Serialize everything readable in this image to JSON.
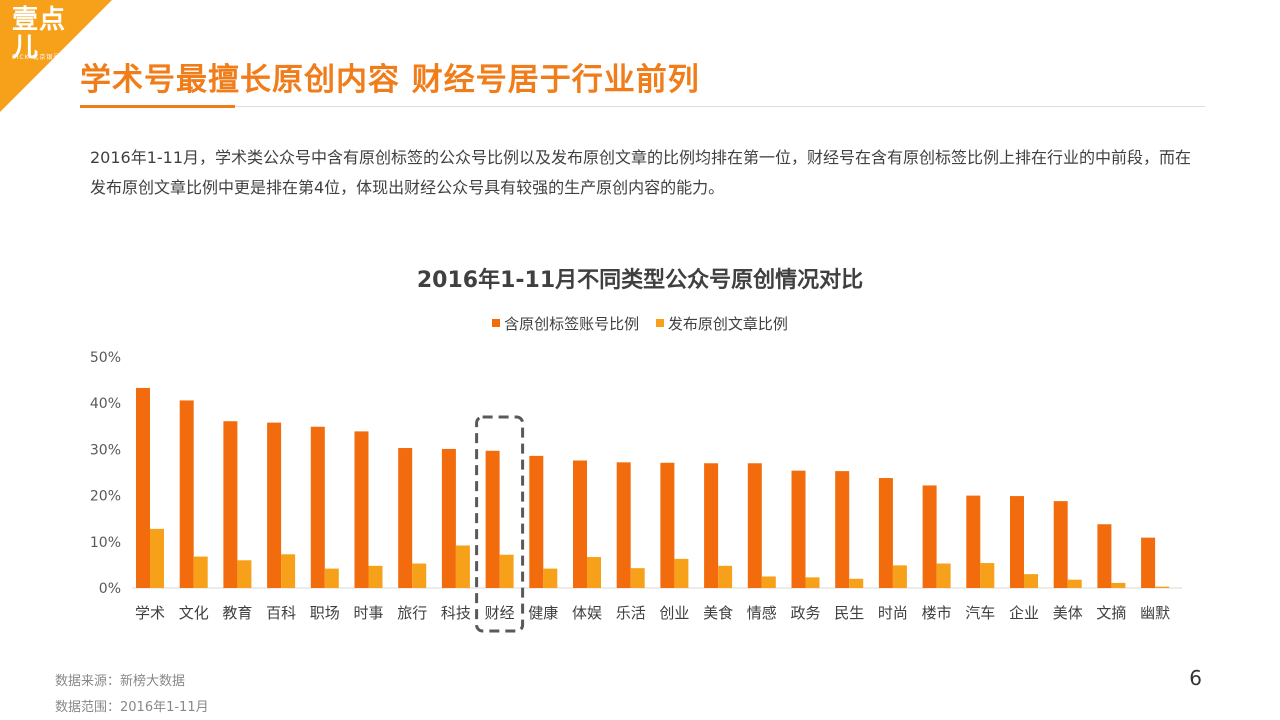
{
  "brand": {
    "logo_text": "壹点儿",
    "logo_sub": "PICK 北京银号",
    "color": "#f7a11a"
  },
  "header": {
    "title": "学术号最擅长原创内容  财经号居于行业前列"
  },
  "intro": {
    "text": "2016年1-11月，学术类公众号中含有原创标签的公众号比例以及发布原创文章的比例均排在第一位，财经号在含有原创标签比例上排在行业的中前段，而在发布原创文章比例中更是排在第4位，体现出财经公众号具有较强的生产原创内容的能力。"
  },
  "chart_data": {
    "type": "bar",
    "title": "2016年1-11月不同类型公众号原创情况对比",
    "categories": [
      "学术",
      "文化",
      "教育",
      "百科",
      "职场",
      "时事",
      "旅行",
      "科技",
      "财经",
      "健康",
      "体娱",
      "乐活",
      "创业",
      "美食",
      "情感",
      "政务",
      "民生",
      "时尚",
      "楼市",
      "汽车",
      "企业",
      "美体",
      "文摘",
      "幽默"
    ],
    "series": [
      {
        "name": "含原创标签账号比例",
        "color": "#f26c0d",
        "values": [
          43.3,
          40.6,
          36.1,
          35.8,
          34.9,
          33.9,
          30.3,
          30.1,
          29.7,
          28.6,
          27.6,
          27.2,
          27.1,
          27.0,
          27.0,
          25.4,
          25.3,
          23.8,
          22.2,
          20.0,
          19.9,
          18.8,
          13.8,
          10.9
        ]
      },
      {
        "name": "发布原创文章比例",
        "color": "#f7a11a",
        "values": [
          12.8,
          6.8,
          6.0,
          7.3,
          4.2,
          4.8,
          5.3,
          9.2,
          7.2,
          4.2,
          6.7,
          4.3,
          6.3,
          4.8,
          2.5,
          2.3,
          2.0,
          4.9,
          5.3,
          5.4,
          3.0,
          1.8,
          1.1,
          0.3
        ]
      }
    ],
    "y_ticks": [
      "0%",
      "10%",
      "20%",
      "30%",
      "40%",
      "50%"
    ],
    "ylim": [
      0,
      50
    ],
    "grid": false,
    "legend_position": "top",
    "highlight_category": "财经"
  },
  "footer": {
    "source": "数据来源：新榜大数据",
    "range": "数据范围：2016年1-11月",
    "page_number": "6"
  }
}
